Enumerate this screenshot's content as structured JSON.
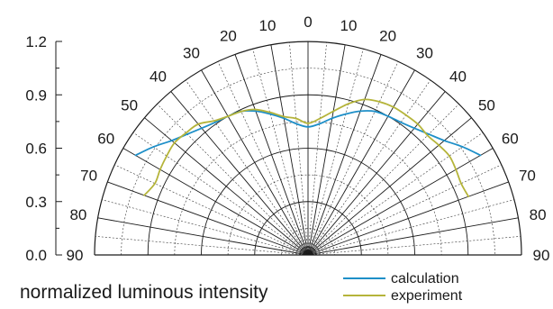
{
  "chart_data": {
    "type": "polar-semicircle",
    "title": "",
    "radial_axis": {
      "label": "normalized luminous intensity",
      "ticks": [
        "0.0",
        "0.3",
        "0.6",
        "0.9",
        "1.2"
      ],
      "range": [
        0,
        1.2
      ],
      "major_rings": [
        0.3,
        0.6,
        0.9,
        1.2
      ],
      "minor_rings": [
        0.15,
        0.45,
        0.75,
        1.05
      ]
    },
    "angular_axis": {
      "range_deg": [
        -90,
        90
      ],
      "tick_step_deg": 10,
      "minor_step_deg": 5,
      "labels": [
        "90",
        "80",
        "70",
        "60",
        "50",
        "40",
        "30",
        "20",
        "10",
        "0",
        "10",
        "20",
        "30",
        "40",
        "50",
        "60",
        "70",
        "80",
        "90"
      ]
    },
    "legend": {
      "placement": "bottom-right"
    },
    "series": [
      {
        "name": "calculation",
        "color": "#1e8fc8",
        "angle_deg": [
          -60,
          -55,
          -50,
          -45,
          -40,
          -35,
          -30,
          -25,
          -20,
          -15,
          -10,
          -5,
          0,
          5,
          10,
          15,
          20,
          25,
          30,
          35,
          40,
          45,
          50,
          55,
          60
        ],
        "intensity": [
          1.12,
          1.06,
          1.0,
          0.96,
          0.93,
          0.91,
          0.9,
          0.89,
          0.86,
          0.82,
          0.78,
          0.74,
          0.72,
          0.74,
          0.78,
          0.82,
          0.86,
          0.89,
          0.9,
          0.91,
          0.93,
          0.96,
          1.0,
          1.06,
          1.12
        ]
      },
      {
        "name": "experiment",
        "color": "#b5b43a",
        "angle_deg": [
          -70,
          -65,
          -60,
          -55,
          -50,
          -45,
          -40,
          -35,
          -30,
          -25,
          -20,
          -15,
          -10,
          -5,
          0,
          5,
          10,
          15,
          20,
          25,
          30,
          35,
          40,
          45,
          50,
          55,
          60,
          65,
          70
        ],
        "intensity": [
          0.98,
          0.95,
          0.96,
          0.97,
          0.98,
          0.97,
          0.96,
          0.92,
          0.9,
          0.89,
          0.87,
          0.83,
          0.79,
          0.77,
          0.74,
          0.77,
          0.82,
          0.88,
          0.93,
          0.95,
          0.96,
          0.96,
          0.96,
          0.95,
          0.96,
          0.97,
          0.96,
          0.95,
          0.96
        ]
      }
    ]
  }
}
